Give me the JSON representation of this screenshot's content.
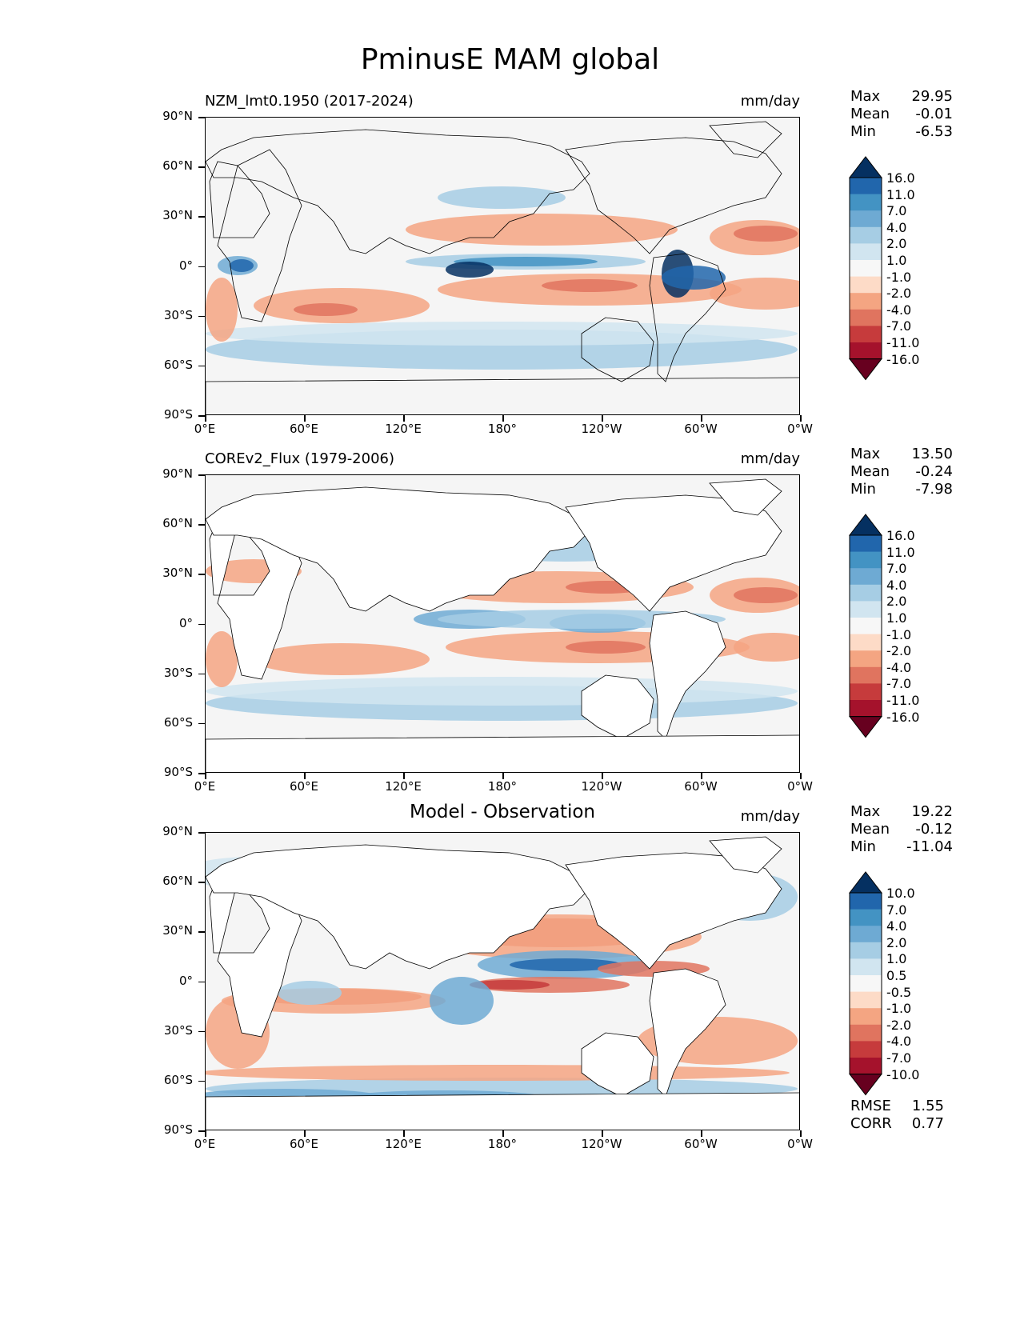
{
  "figure": {
    "title": "PminusE MAM global"
  },
  "axes": {
    "y_labels": [
      "90°N",
      "60°N",
      "30°N",
      "0°",
      "30°S",
      "60°S",
      "90°S"
    ],
    "x_labels": [
      "0°E",
      "60°E",
      "120°E",
      "180°",
      "120°W",
      "60°W",
      "0°W"
    ]
  },
  "panels": [
    {
      "title": "NZM_lmt0.1950 (2017-2024)",
      "units": "mm/day",
      "stats": [
        {
          "label": "Max",
          "value": "29.95"
        },
        {
          "label": "Mean",
          "value": "-0.01"
        },
        {
          "label": "Min",
          "value": "-6.53"
        }
      ],
      "colorbar_labels": [
        "16.0",
        "11.0",
        "7.0",
        "4.0",
        "2.0",
        "1.0",
        "-1.0",
        "-2.0",
        "-4.0",
        "-7.0",
        "-11.0",
        "-16.0"
      ]
    },
    {
      "title": "COREv2_Flux (1979-2006)",
      "units": "mm/day",
      "stats": [
        {
          "label": "Max",
          "value": "13.50"
        },
        {
          "label": "Mean",
          "value": "-0.24"
        },
        {
          "label": "Min",
          "value": "-7.98"
        }
      ],
      "colorbar_labels": [
        "16.0",
        "11.0",
        "7.0",
        "4.0",
        "2.0",
        "1.0",
        "-1.0",
        "-2.0",
        "-4.0",
        "-7.0",
        "-11.0",
        "-16.0"
      ]
    },
    {
      "title": "Model - Observation",
      "units": "mm/day",
      "stats": [
        {
          "label": "Max",
          "value": "19.22"
        },
        {
          "label": "Mean",
          "value": "-0.12"
        },
        {
          "label": "Min",
          "value": "-11.04"
        }
      ],
      "colorbar_labels": [
        "10.0",
        "7.0",
        "4.0",
        "2.0",
        "1.0",
        "0.5",
        "-0.5",
        "-1.0",
        "-2.0",
        "-4.0",
        "-7.0",
        "-10.0"
      ],
      "metrics": [
        {
          "label": "RMSE",
          "value": "1.55"
        },
        {
          "label": "CORR",
          "value": "0.77"
        }
      ]
    }
  ],
  "colors": {
    "colorbar": [
      "#053061",
      "#2166ac",
      "#4393c3",
      "#6eaad3",
      "#a6cde4",
      "#d1e5f0",
      "#f7f7f7",
      "#fddbc7",
      "#f4a582",
      "#e0745f",
      "#c63b3c",
      "#a5122c",
      "#67001f"
    ],
    "land": "#ffffff",
    "ocean_neutral": "#f5f5f5"
  }
}
